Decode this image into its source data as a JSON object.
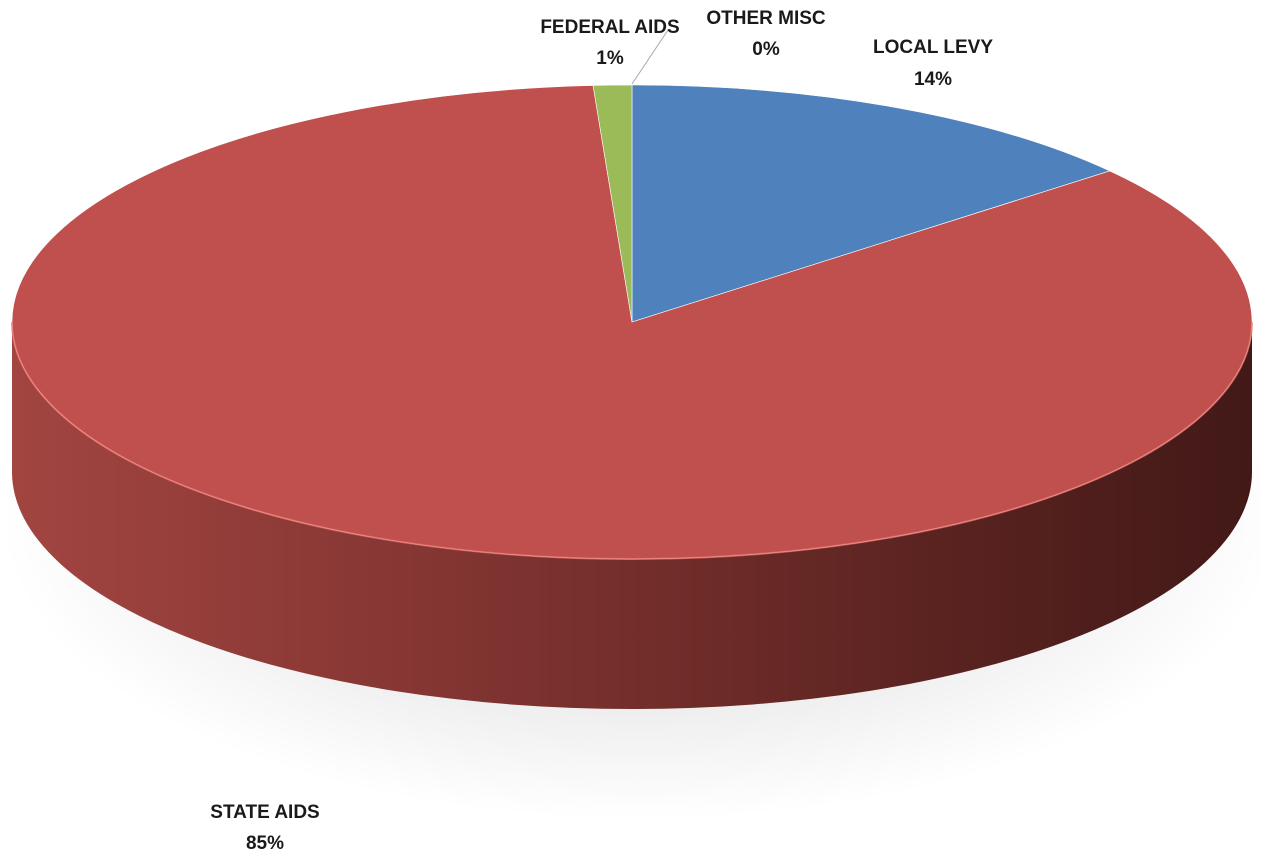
{
  "chart_data": {
    "type": "pie",
    "title": "",
    "legend": "none",
    "slices": [
      {
        "label": "LOCAL LEVY",
        "value": 14,
        "value_label": "14%",
        "color": "#4F81BD"
      },
      {
        "label": "STATE AIDS",
        "value": 85,
        "value_label": "85%",
        "color": "#C0504D"
      },
      {
        "label": "FEDERAL AIDS",
        "value": 1,
        "value_label": "1%",
        "color": "#9BBB59"
      },
      {
        "label": "OTHER MISC",
        "value": 0,
        "value_label": "0%",
        "color": "#8064A2"
      }
    ]
  }
}
